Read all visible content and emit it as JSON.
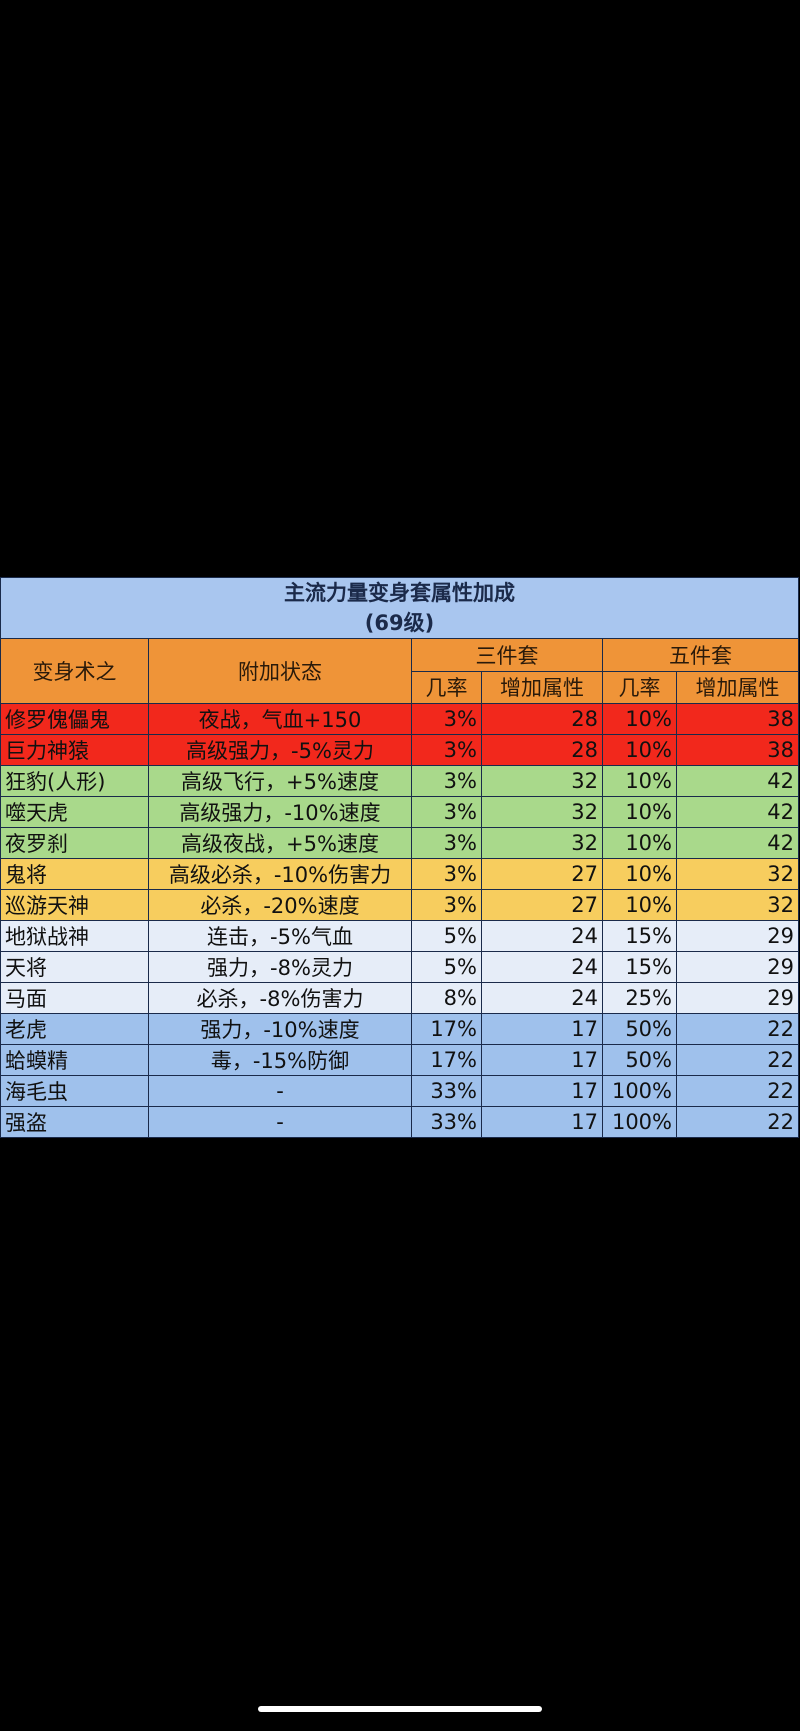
{
  "table": {
    "title": "主流力量变身套属性加成",
    "subtitle": "(69级)",
    "headers": {
      "col1": "变身术之",
      "col2": "附加状态",
      "group3": "三件套",
      "group5": "五件套",
      "rate3": "几率",
      "attr3": "增加属性",
      "rate5": "几率",
      "attr5": "增加属性"
    },
    "row_colors": {
      "red": "#f2281c",
      "green": "#a9d98b",
      "yellow": "#f7cd5e",
      "light": "#e6edf8",
      "blue": "#9fc1ec"
    },
    "rows": [
      {
        "name": "修罗傀儡鬼",
        "status": "夜战，气血+150",
        "rate3": "3%",
        "attr3": "28",
        "rate5": "10%",
        "attr5": "38",
        "color": "red"
      },
      {
        "name": "巨力神猿",
        "status": "高级强力，-5%灵力",
        "rate3": "3%",
        "attr3": "28",
        "rate5": "10%",
        "attr5": "38",
        "color": "red"
      },
      {
        "name": "狂豹(人形)",
        "status": "高级飞行，+5%速度",
        "rate3": "3%",
        "attr3": "32",
        "rate5": "10%",
        "attr5": "42",
        "color": "green"
      },
      {
        "name": "噬天虎",
        "status": "高级强力，-10%速度",
        "rate3": "3%",
        "attr3": "32",
        "rate5": "10%",
        "attr5": "42",
        "color": "green"
      },
      {
        "name": "夜罗刹",
        "status": "高级夜战，+5%速度",
        "rate3": "3%",
        "attr3": "32",
        "rate5": "10%",
        "attr5": "42",
        "color": "green"
      },
      {
        "name": "鬼将",
        "status": "高级必杀，-10%伤害力",
        "rate3": "3%",
        "attr3": "27",
        "rate5": "10%",
        "attr5": "32",
        "color": "yellow"
      },
      {
        "name": "巡游天神",
        "status": "必杀，-20%速度",
        "rate3": "3%",
        "attr3": "27",
        "rate5": "10%",
        "attr5": "32",
        "color": "yellow"
      },
      {
        "name": "地狱战神",
        "status": "连击，-5%气血",
        "rate3": "5%",
        "attr3": "24",
        "rate5": "15%",
        "attr5": "29",
        "color": "light"
      },
      {
        "name": "天将",
        "status": "强力，-8%灵力",
        "rate3": "5%",
        "attr3": "24",
        "rate5": "15%",
        "attr5": "29",
        "color": "light"
      },
      {
        "name": "马面",
        "status": "必杀，-8%伤害力",
        "rate3": "8%",
        "attr3": "24",
        "rate5": "25%",
        "attr5": "29",
        "color": "light"
      },
      {
        "name": "老虎",
        "status": "强力，-10%速度",
        "rate3": "17%",
        "attr3": "17",
        "rate5": "50%",
        "attr5": "22",
        "color": "blue"
      },
      {
        "name": "蛤蟆精",
        "status": "毒，-15%防御",
        "rate3": "17%",
        "attr3": "17",
        "rate5": "50%",
        "attr5": "22",
        "color": "blue"
      },
      {
        "name": "海毛虫",
        "status": "-",
        "rate3": "33%",
        "attr3": "17",
        "rate5": "100%",
        "attr5": "22",
        "color": "blue"
      },
      {
        "name": "强盗",
        "status": "-",
        "rate3": "33%",
        "attr3": "17",
        "rate5": "100%",
        "attr5": "22",
        "color": "blue"
      }
    ]
  }
}
